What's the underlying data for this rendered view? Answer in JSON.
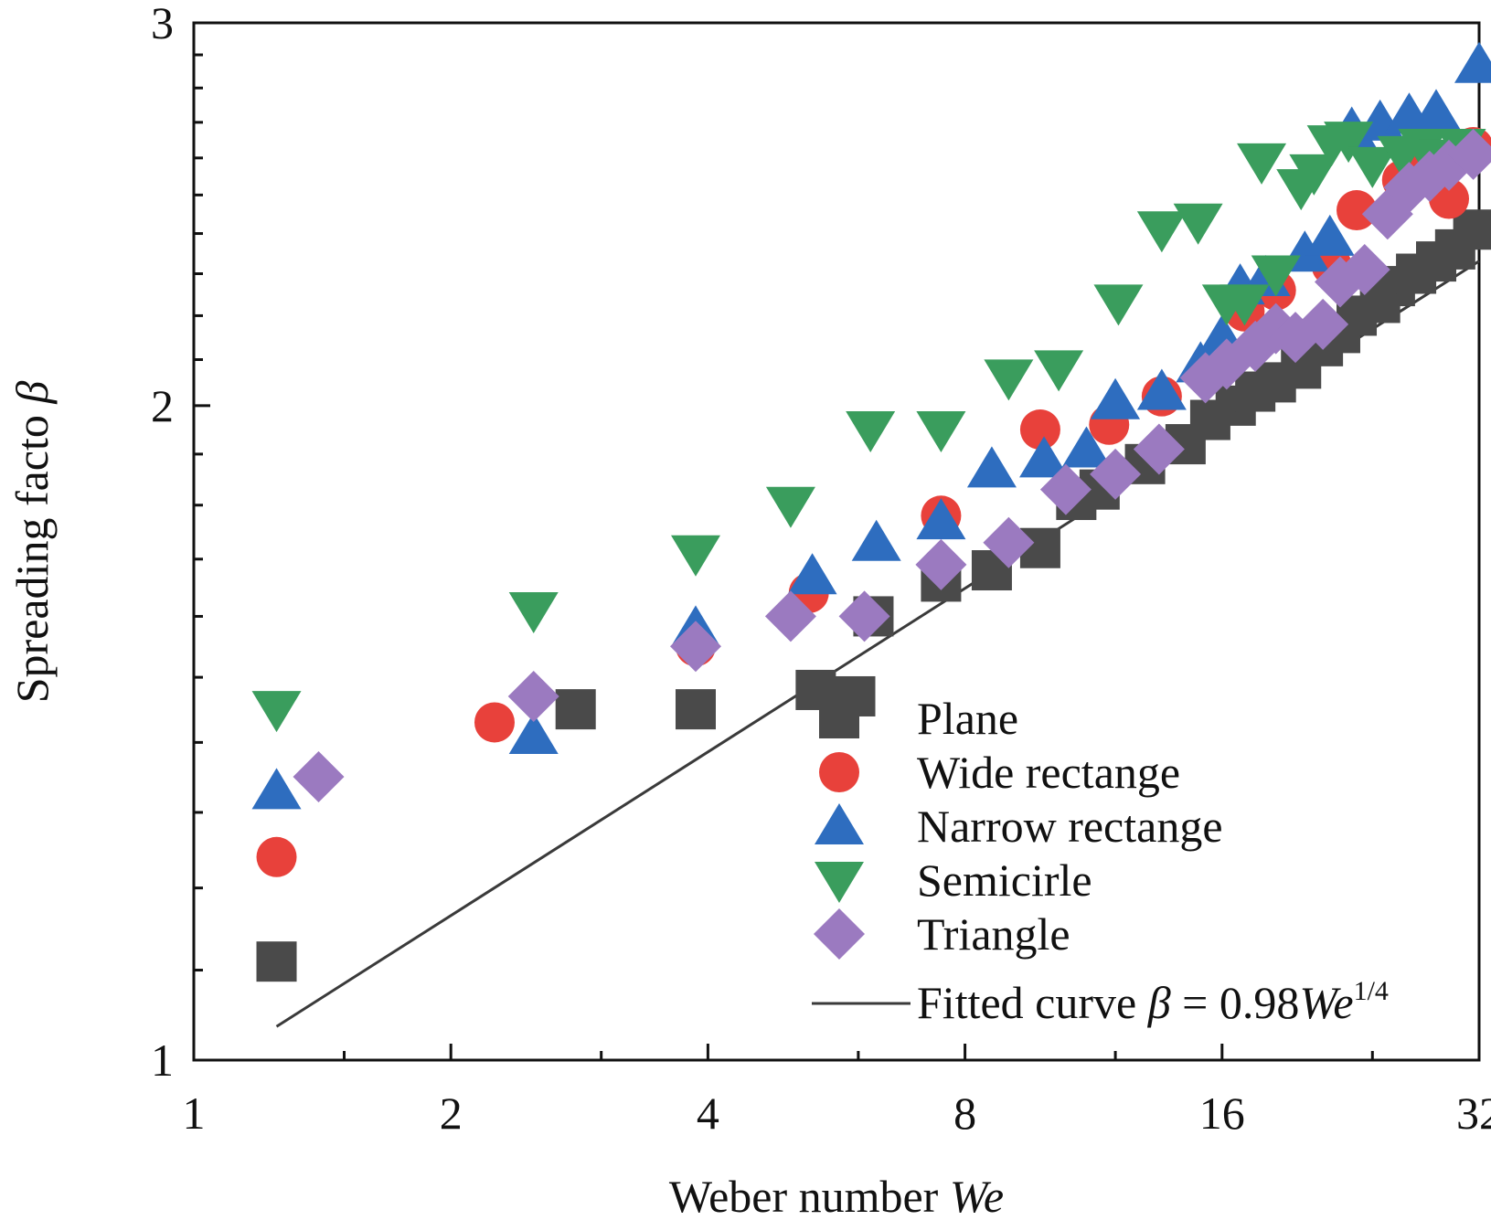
{
  "chart_data": {
    "type": "scatter",
    "title": "",
    "xlabel": "Weber number",
    "xlabel_symbol": "We",
    "ylabel": "Spreading facto",
    "ylabel_symbol": "β",
    "x_scale": "log2",
    "y_scale": "log",
    "xlim": [
      1,
      32
    ],
    "ylim": [
      1,
      3
    ],
    "xticks": [
      {
        "value": 1,
        "label": "1"
      },
      {
        "value": 2,
        "label": "2"
      },
      {
        "value": 4,
        "label": "4"
      },
      {
        "value": 8,
        "label": "8"
      },
      {
        "value": 16,
        "label": "16"
      },
      {
        "value": 32,
        "label": "32"
      }
    ],
    "yticks": [
      {
        "value": 1,
        "label": "1"
      },
      {
        "value": 2,
        "label": "2"
      },
      {
        "value": 3,
        "label": "3"
      }
    ],
    "legend_position": "bottom-right",
    "series": [
      {
        "name": "Plane",
        "marker": "square",
        "color": "#4a4a4a",
        "points": [
          [
            1.25,
            1.11
          ],
          [
            2.8,
            1.45
          ],
          [
            3.87,
            1.45
          ],
          [
            5.35,
            1.48
          ],
          [
            5.95,
            1.47
          ],
          [
            6.25,
            1.6
          ],
          [
            7.5,
            1.66
          ],
          [
            8.6,
            1.68
          ],
          [
            9.8,
            1.72
          ],
          [
            10.8,
            1.81
          ],
          [
            11.5,
            1.83
          ],
          [
            13,
            1.88
          ],
          [
            14.5,
            1.92
          ],
          [
            15.5,
            1.97
          ],
          [
            16.6,
            2.0
          ],
          [
            17.5,
            2.03
          ],
          [
            18.5,
            2.05
          ],
          [
            19.8,
            2.08
          ],
          [
            21,
            2.13
          ],
          [
            22,
            2.16
          ],
          [
            23,
            2.2
          ],
          [
            24.5,
            2.23
          ],
          [
            25.5,
            2.27
          ],
          [
            27,
            2.3
          ],
          [
            28.5,
            2.33
          ],
          [
            30,
            2.36
          ],
          [
            31.5,
            2.41
          ]
        ]
      },
      {
        "name": "Wide rectange",
        "marker": "circle",
        "color": "#e8413b",
        "points": [
          [
            1.25,
            1.24
          ],
          [
            2.25,
            1.43
          ],
          [
            3.87,
            1.55
          ],
          [
            5.25,
            1.64
          ],
          [
            7.5,
            1.78
          ],
          [
            9.8,
            1.95
          ],
          [
            11.8,
            1.96
          ],
          [
            13.6,
            2.02
          ],
          [
            15.5,
            2.08
          ],
          [
            17,
            2.21
          ],
          [
            18.5,
            2.26
          ],
          [
            21.5,
            2.32
          ],
          [
            23,
            2.46
          ],
          [
            26,
            2.54
          ],
          [
            27.5,
            2.58
          ],
          [
            29.5,
            2.49
          ],
          [
            31.5,
            2.63
          ]
        ]
      },
      {
        "name": "Narrow rectange",
        "marker": "triangle-up",
        "color": "#2e6dbf",
        "points": [
          [
            1.25,
            1.33
          ],
          [
            2.5,
            1.41
          ],
          [
            3.87,
            1.58
          ],
          [
            5.3,
            1.67
          ],
          [
            6.3,
            1.73
          ],
          [
            7.5,
            1.77
          ],
          [
            8.6,
            1.87
          ],
          [
            9.9,
            1.89
          ],
          [
            11.1,
            1.91
          ],
          [
            12,
            2.01
          ],
          [
            13.6,
            2.03
          ],
          [
            15.1,
            2.09
          ],
          [
            16,
            2.15
          ],
          [
            16.8,
            2.27
          ],
          [
            18,
            2.29
          ],
          [
            20,
            2.35
          ],
          [
            21.4,
            2.39
          ],
          [
            22.7,
            2.68
          ],
          [
            24.5,
            2.7
          ],
          [
            26.5,
            2.72
          ],
          [
            28.5,
            2.73
          ],
          [
            32,
            2.87
          ]
        ]
      },
      {
        "name": "Semicirle",
        "marker": "triangle-down",
        "color": "#3a9d5d",
        "points": [
          [
            1.25,
            1.45
          ],
          [
            2.5,
            1.61
          ],
          [
            3.87,
            1.71
          ],
          [
            5,
            1.8
          ],
          [
            6.2,
            1.95
          ],
          [
            7.5,
            1.95
          ],
          [
            9,
            2.06
          ],
          [
            10.3,
            2.08
          ],
          [
            12.1,
            2.23
          ],
          [
            13.6,
            2.41
          ],
          [
            15,
            2.43
          ],
          [
            16.2,
            2.23
          ],
          [
            17,
            2.23
          ],
          [
            17.8,
            2.59
          ],
          [
            18.5,
            2.3
          ],
          [
            19.8,
            2.52
          ],
          [
            20.5,
            2.56
          ],
          [
            21.5,
            2.64
          ],
          [
            22.5,
            2.65
          ],
          [
            24,
            2.58
          ],
          [
            26,
            2.61
          ],
          [
            27.5,
            2.63
          ],
          [
            29,
            2.6
          ],
          [
            30.5,
            2.63
          ]
        ]
      },
      {
        "name": "Triangle",
        "marker": "diamond",
        "color": "#9b7ac0",
        "points": [
          [
            1.4,
            1.35
          ],
          [
            2.5,
            1.47
          ],
          [
            3.87,
            1.55
          ],
          [
            5,
            1.6
          ],
          [
            6.1,
            1.6
          ],
          [
            7.5,
            1.69
          ],
          [
            9,
            1.73
          ],
          [
            10.5,
            1.83
          ],
          [
            12,
            1.86
          ],
          [
            13.5,
            1.91
          ],
          [
            15.3,
            2.06
          ],
          [
            16.2,
            2.09
          ],
          [
            17.5,
            2.13
          ],
          [
            18.5,
            2.17
          ],
          [
            19.5,
            2.15
          ],
          [
            21,
            2.18
          ],
          [
            22,
            2.28
          ],
          [
            23.5,
            2.31
          ],
          [
            25,
            2.45
          ],
          [
            26.5,
            2.52
          ],
          [
            28,
            2.55
          ],
          [
            29.5,
            2.58
          ],
          [
            31.5,
            2.61
          ]
        ]
      }
    ],
    "fit": {
      "name": "Fitted curve",
      "equation_lhs": "β",
      "equation_eq": "=",
      "equation_coef": "0.98",
      "equation_var": "We",
      "equation_exp": "1/4",
      "coefficient": 0.98,
      "exponent": 0.25,
      "x_range": [
        1.25,
        32
      ],
      "color": "#3a3a3a"
    }
  }
}
